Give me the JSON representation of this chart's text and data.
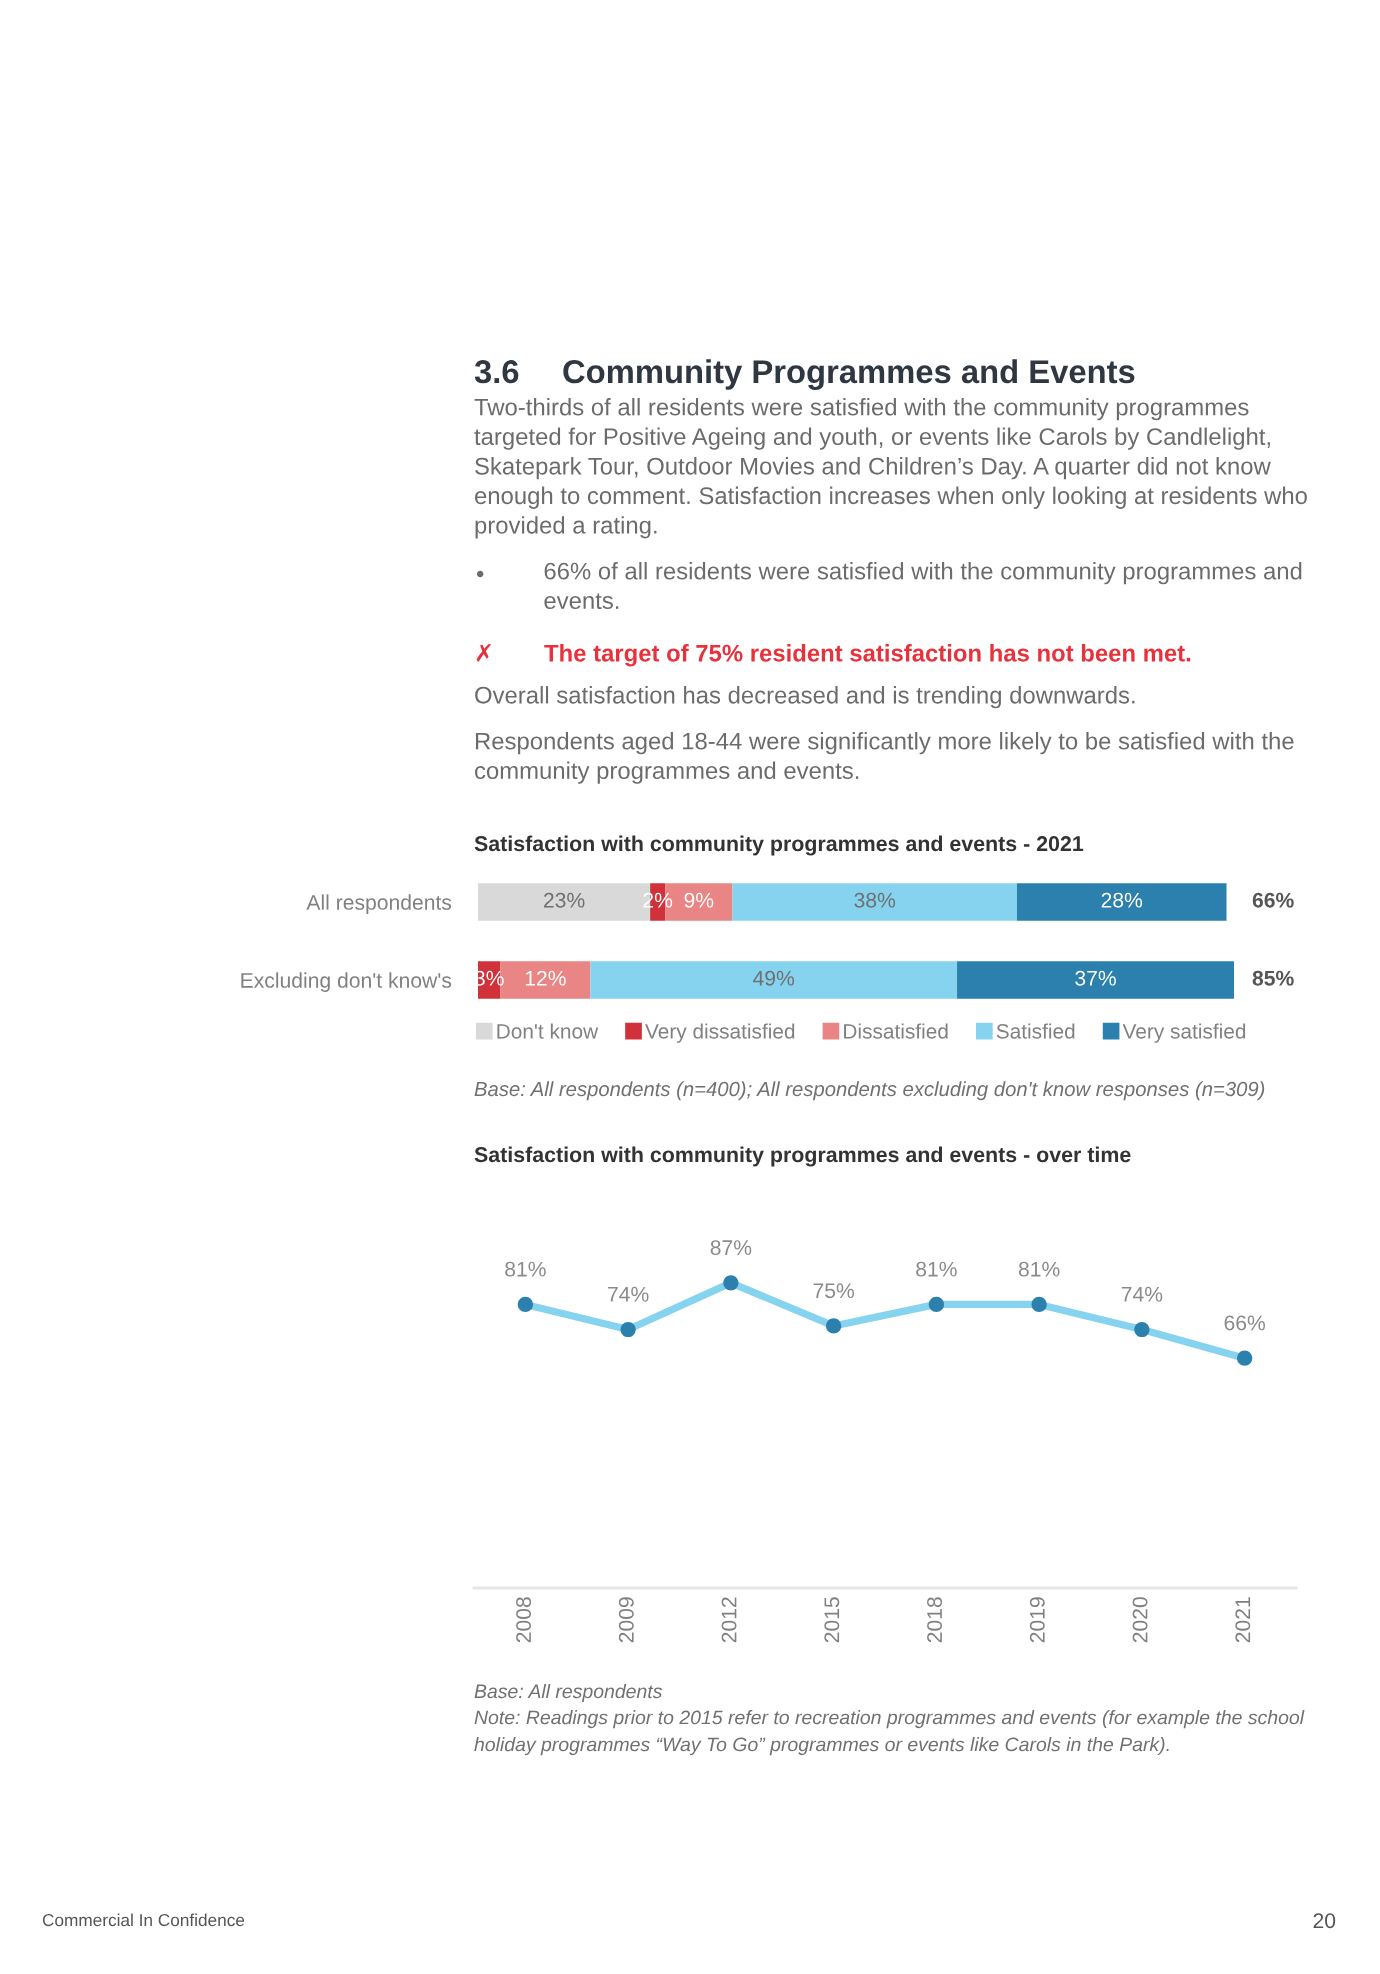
{
  "chart_data": [
    {
      "type": "bar",
      "orientation": "horizontal",
      "stacked": true,
      "title": "Satisfaction with community programmes and events - 2021",
      "categories": [
        "All respondents",
        "Excluding don't know's"
      ],
      "series": [
        {
          "name": "Don't know",
          "color": "#d9d9d9",
          "values": [
            23,
            null
          ],
          "value_labels": [
            "23%",
            null
          ]
        },
        {
          "name": "Very dissatisfied",
          "color": "#d1313a",
          "values": [
            2,
            3
          ],
          "value_labels": [
            "2%",
            "3%"
          ]
        },
        {
          "name": "Dissatisfied",
          "color": "#e98585",
          "values": [
            9,
            12
          ],
          "value_labels": [
            "9%",
            "12%"
          ]
        },
        {
          "name": "Satisfied",
          "color": "#86d3ef",
          "values": [
            38,
            49
          ],
          "value_labels": [
            "38%",
            "49%"
          ]
        },
        {
          "name": "Very satisfied",
          "color": "#2b80ad",
          "values": [
            28,
            37
          ],
          "value_labels": [
            "28%",
            "37%"
          ]
        }
      ],
      "legend": "bottom",
      "tick_labels": "y",
      "annotations": [
        "3.6",
        "Community Programmes and Events",
        "Two-thirds of all residents were satisfied with the community programmes targeted for Positive Ageing and youth, or events like Carols by Candlelight, Skatepark Tour, Outdoor Movies and Children’s Day. A quarter did not know enough to comment. Satisfaction increases when only looking at residents who provided a rating.",
        "•",
        "66% of all residents were satisfied with the community programmes and events.",
        "✗",
        "The target of 75% resident satisfaction has not been met.",
        "Overall satisfaction has decreased and is trending downwards.",
        "Respondents aged 18-44 were significantly more likely to be satisfied with the community programmes and events.",
        "Base: All respondents (n=400); All respondents excluding don't know responses (n=309)",
        "66%",
        "85%"
      ]
    },
    {
      "type": "line",
      "title": "Satisfaction with community programmes and events - over time",
      "categories": [
        "2008",
        "2009",
        "2012",
        "2015",
        "2018",
        "2019",
        "2020",
        "2021"
      ],
      "series": [
        {
          "color": "#86d3ef",
          "colors": [
            "#2b80ad",
            "#2b80ad",
            "#2b80ad",
            "#2b80ad",
            "#2b80ad",
            "#2b80ad",
            "#2b80ad",
            "#2b80ad"
          ],
          "values": [
            81,
            74,
            87,
            75,
            81,
            81,
            74,
            66
          ],
          "value_labels": [
            "81%",
            "74%",
            "87%",
            "75%",
            "81%",
            "81%",
            "74%",
            "66%"
          ]
        }
      ],
      "marker": "circle",
      "tick_labels": "x",
      "annotations": [
        "Base: All respondents",
        "Note: Readings prior to 2015 refer to recreation programmes and events (for example the school holiday programmes “Way To Go” programmes or events like Carols in the Park).",
        "Commercial In Confidence",
        "20"
      ]
    }
  ]
}
